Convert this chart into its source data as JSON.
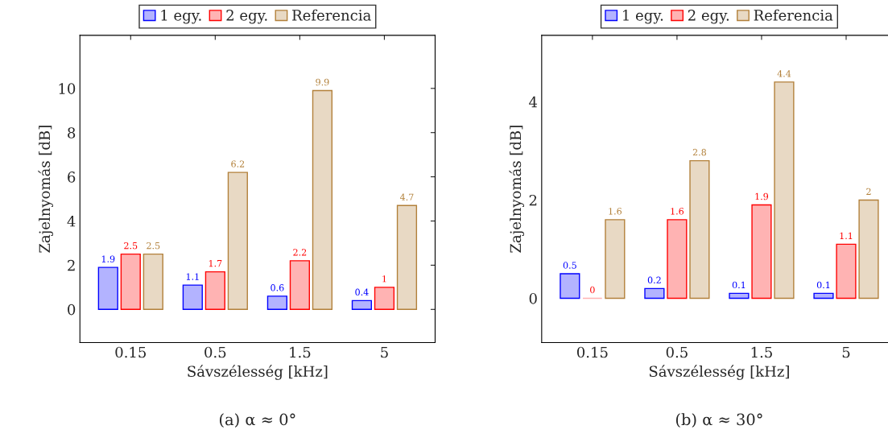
{
  "chart_data": [
    {
      "type": "bar",
      "categories": [
        "0.15",
        "0.5",
        "1.5",
        "5"
      ],
      "xlabel": "Sávszélesség [kHz]",
      "ylabel": "Zajelnyomás [dB]",
      "ylim": [
        -1.5,
        12.4
      ],
      "yticks": [
        0,
        2,
        4,
        6,
        8,
        10
      ],
      "legend": "top",
      "grid": false,
      "data_labels": true,
      "annotations": [
        "(a) α ≈ 0°"
      ],
      "series": [
        {
          "name": "1 egy.",
          "color": "#b3b3ff",
          "values": [
            1.9,
            1.1,
            0.6,
            0.4
          ]
        },
        {
          "name": "2 egy.",
          "color": "#ffb3b3",
          "values": [
            2.5,
            1.7,
            2.2,
            1
          ]
        },
        {
          "name": "Referencia",
          "color": "#e8d9c4",
          "values": [
            2.5,
            6.2,
            9.9,
            4.7
          ]
        }
      ]
    },
    {
      "type": "bar",
      "categories": [
        "0.15",
        "0.5",
        "1.5",
        "5"
      ],
      "xlabel": "Sávszélesség [kHz]",
      "ylabel": "Zajelnyomás [dB]",
      "ylim": [
        -0.9,
        5.35
      ],
      "yticks": [
        0,
        2,
        4
      ],
      "legend": "top",
      "grid": false,
      "data_labels": true,
      "annotations": [
        "(b) α ≈ 30°"
      ],
      "series": [
        {
          "name": "1 egy.",
          "color": "#b3b3ff",
          "values": [
            0.5,
            0.2,
            0.1,
            0.1
          ]
        },
        {
          "name": "2 egy.",
          "color": "#ffb3b3",
          "values": [
            0,
            1.6,
            1.9,
            1.1
          ]
        },
        {
          "name": "Referencia",
          "color": "#e8d9c4",
          "values": [
            1.6,
            2.8,
            4.4,
            2
          ]
        }
      ]
    }
  ]
}
